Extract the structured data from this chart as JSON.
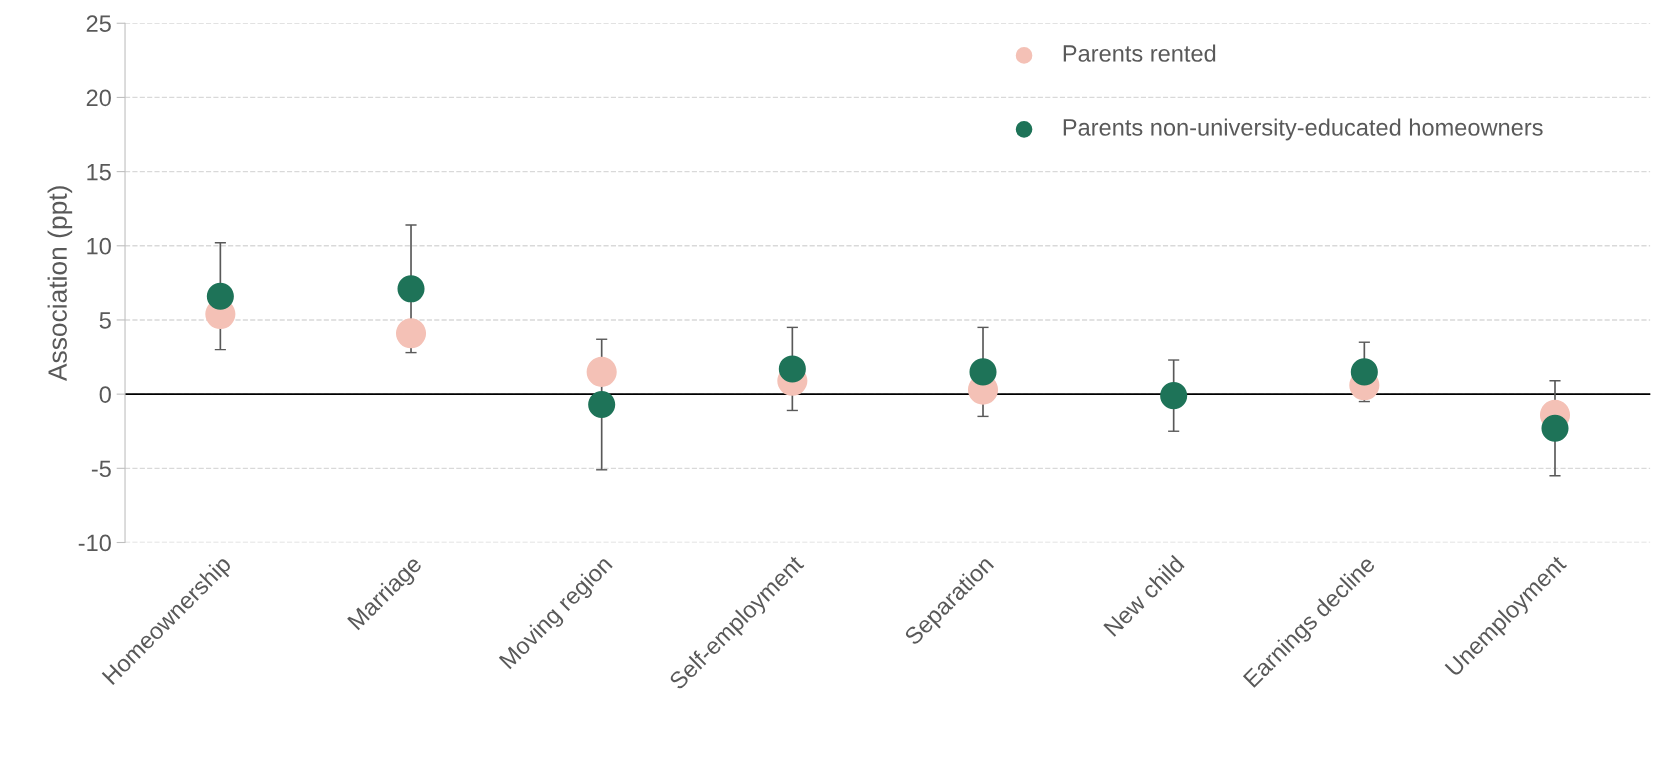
{
  "chart_data": {
    "type": "scatter",
    "ylabel": "Association (ppt)",
    "categories": [
      "Homeownership",
      "Marriage",
      "Moving region",
      "Self-employment",
      "Separation",
      "New child",
      "Earnings decline",
      "Unemployment"
    ],
    "series": [
      {
        "name": "Parents rented",
        "color": "#f4c1b6",
        "values": [
          5.4,
          4.1,
          1.5,
          0.9,
          0.3,
          null,
          0.6,
          -1.4
        ]
      },
      {
        "name": "Parents non-university-educated homeowners",
        "color": "#1e7358",
        "values": [
          6.6,
          7.1,
          -0.7,
          1.7,
          1.5,
          -0.1,
          1.5,
          -2.3
        ],
        "errors": [
          3.6,
          4.3,
          4.4,
          2.8,
          3.0,
          2.4,
          2.0,
          3.2
        ]
      }
    ],
    "ylim": [
      -10,
      25
    ],
    "yticks": [
      -10,
      -5,
      0,
      5,
      10,
      15,
      20,
      25
    ],
    "ref_lines": [
      {
        "axis": "y",
        "value": 0,
        "color": "#000000"
      }
    ],
    "grid": "y",
    "legend": "top right",
    "marker": "circle"
  }
}
